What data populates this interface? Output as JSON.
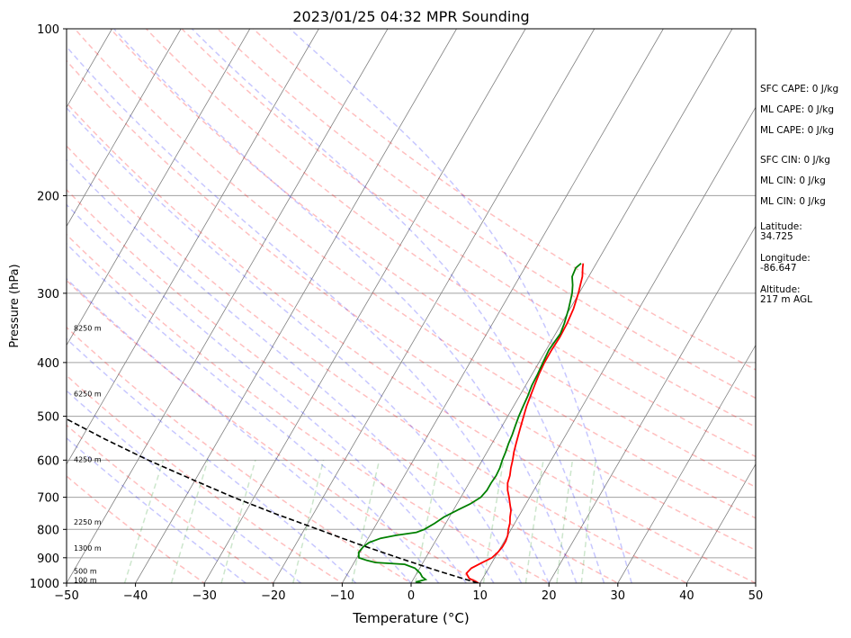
{
  "title": "2023/01/25 04:32 MPR Sounding",
  "chart_data": {
    "type": "skew-t",
    "title": "2023/01/25 04:32 MPR Sounding",
    "xlabel": "Temperature (°C)",
    "ylabel": "Pressure (hPa)",
    "xlim": [
      -50,
      50
    ],
    "ylim": [
      1000,
      100
    ],
    "y_scale": "log",
    "x_ticks": [
      -50,
      -40,
      -30,
      -20,
      -10,
      0,
      10,
      20,
      30,
      40,
      50
    ],
    "x_tick_labels": [
      "−50",
      "−40",
      "−30",
      "−20",
      "−10",
      "0",
      "10",
      "20",
      "30",
      "40",
      "50"
    ],
    "y_ticks": [
      1000,
      900,
      800,
      700,
      600,
      500,
      400,
      300,
      200,
      100
    ],
    "y_tick_labels": [
      "1000",
      "900",
      "800",
      "700",
      "600",
      "500",
      "400",
      "300",
      "200",
      "100"
    ],
    "height_labels": [
      {
        "p": 990,
        "label": "100 m"
      },
      {
        "p": 955,
        "label": "500 m"
      },
      {
        "p": 868,
        "label": "1300 m"
      },
      {
        "p": 778,
        "label": "2250 m"
      },
      {
        "p": 600,
        "label": "4250 m"
      },
      {
        "p": 457,
        "label": "6250 m"
      },
      {
        "p": 348,
        "label": "8250 m"
      }
    ],
    "series": [
      {
        "kind": "temperature",
        "color": "#ff0000",
        "points": [
          [
            1000,
            9.8
          ],
          [
            980,
            8.0
          ],
          [
            960,
            7.2
          ],
          [
            940,
            7.5
          ],
          [
            920,
            8.5
          ],
          [
            900,
            9.6
          ],
          [
            880,
            10.0
          ],
          [
            860,
            10.2
          ],
          [
            840,
            10.2
          ],
          [
            820,
            10.0
          ],
          [
            800,
            9.6
          ],
          [
            780,
            9.3
          ],
          [
            760,
            8.8
          ],
          [
            740,
            8.4
          ],
          [
            720,
            7.7
          ],
          [
            700,
            7.0
          ],
          [
            680,
            6.2
          ],
          [
            660,
            5.6
          ],
          [
            640,
            5.3
          ],
          [
            620,
            4.8
          ],
          [
            600,
            4.4
          ],
          [
            580,
            3.9
          ],
          [
            560,
            3.5
          ],
          [
            540,
            3.1
          ],
          [
            520,
            2.7
          ],
          [
            500,
            2.3
          ],
          [
            480,
            1.9
          ],
          [
            460,
            1.6
          ],
          [
            440,
            1.3
          ],
          [
            420,
            1.0
          ],
          [
            400,
            0.8
          ],
          [
            380,
            0.8
          ],
          [
            360,
            0.9
          ],
          [
            340,
            0.8
          ],
          [
            320,
            0.5
          ],
          [
            300,
            -0.1
          ],
          [
            290,
            -0.5
          ],
          [
            280,
            -0.9
          ],
          [
            270,
            -1.6
          ],
          [
            265,
            -1.9
          ]
        ]
      },
      {
        "kind": "dewpoint",
        "color": "#008000",
        "points": [
          [
            1000,
            1.5
          ],
          [
            995,
            0.6
          ],
          [
            985,
            1.8
          ],
          [
            975,
            1.1
          ],
          [
            960,
            0.5
          ],
          [
            940,
            -0.7
          ],
          [
            925,
            -2.5
          ],
          [
            918,
            -6.9
          ],
          [
            910,
            -8.3
          ],
          [
            900,
            -9.7
          ],
          [
            880,
            -10.2
          ],
          [
            860,
            -10.0
          ],
          [
            845,
            -9.5
          ],
          [
            830,
            -8.2
          ],
          [
            820,
            -6.2
          ],
          [
            810,
            -3.5
          ],
          [
            800,
            -2.6
          ],
          [
            780,
            -1.6
          ],
          [
            760,
            -0.8
          ],
          [
            740,
            0.5
          ],
          [
            720,
            1.9
          ],
          [
            700,
            2.9
          ],
          [
            680,
            3.2
          ],
          [
            660,
            3.2
          ],
          [
            640,
            3.3
          ],
          [
            620,
            3.2
          ],
          [
            600,
            2.9
          ],
          [
            580,
            2.7
          ],
          [
            560,
            2.4
          ],
          [
            540,
            2.2
          ],
          [
            520,
            1.9
          ],
          [
            500,
            1.6
          ],
          [
            480,
            1.4
          ],
          [
            460,
            1.2
          ],
          [
            440,
            0.9
          ],
          [
            420,
            0.8
          ],
          [
            400,
            0.6
          ],
          [
            380,
            0.4
          ],
          [
            370,
            0.5
          ],
          [
            355,
            0.7
          ],
          [
            340,
            0.4
          ],
          [
            320,
            -0.2
          ],
          [
            300,
            -1.0
          ],
          [
            290,
            -1.6
          ],
          [
            280,
            -2.4
          ],
          [
            270,
            -2.6
          ],
          [
            265,
            -2.2
          ]
        ]
      },
      {
        "kind": "parcel",
        "color": "#000000",
        "style": "dashed",
        "points": [
          [
            1000,
            9.7
          ],
          [
            950,
            2.8
          ],
          [
            900,
            -4.0
          ],
          [
            850,
            -11.0
          ],
          [
            800,
            -18.0
          ],
          [
            750,
            -25.5
          ],
          [
            700,
            -33.0
          ],
          [
            650,
            -40.5
          ],
          [
            600,
            -48.5
          ],
          [
            550,
            -56.5
          ],
          [
            500,
            -64.8
          ],
          [
            450,
            -73.3
          ],
          [
            400,
            -82.0
          ],
          [
            350,
            -90.5
          ],
          [
            300,
            -99.5
          ],
          [
            265,
            -106.0
          ]
        ]
      }
    ],
    "isotherm_spacing": 10,
    "dry_adiabat_thetas_c": [
      -30,
      -20,
      -10,
      0,
      10,
      20,
      30,
      40,
      50,
      60,
      70,
      80,
      90,
      100,
      110,
      120
    ],
    "moist_adiabat_start_temps": [
      -24,
      -16,
      -8,
      0,
      4,
      8,
      12,
      16,
      20,
      24,
      28,
      32
    ],
    "mixing_ratios_gkg": [
      0.1,
      0.2,
      0.4,
      1,
      2,
      4,
      8,
      12,
      16,
      20
    ],
    "colors": {
      "temperature": "#ff0000",
      "dewpoint": "#008000",
      "parcel": "#000000",
      "isotherm": "#808080",
      "isobar": "#a0a0a0",
      "dry_adiabat": "#ff0000",
      "moist_adiabat": "#0000ff",
      "mixing_ratio": "#008000"
    }
  },
  "stats": {
    "sfc_cape": "SFC CAPE: 0 J/kg",
    "ml_cape": "ML CAPE: 0 J/kg",
    "ml_cape_2": "ML CAPE: 0 J/kg",
    "sfc_cin": "SFC CIN: 0 J/kg",
    "ml_cin": "ML CIN: 0 J/kg",
    "ml_cin_2": "ML CIN: 0 J/kg",
    "latitude": "Latitude:\n34.725",
    "longitude": "Longitude:\n-86.647",
    "altitude": "Altitude:\n217 m AGL"
  }
}
